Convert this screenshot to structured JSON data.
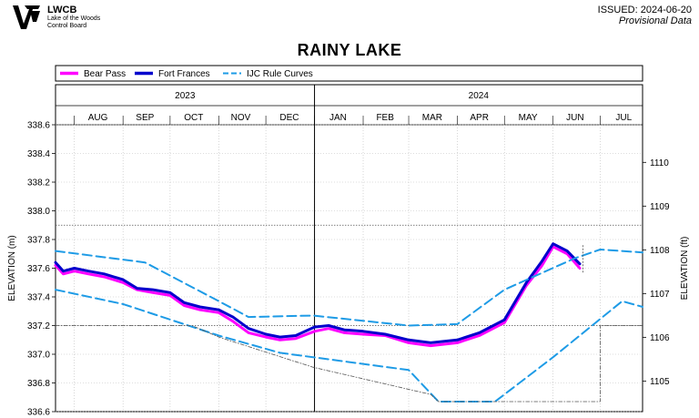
{
  "header": {
    "org_short": "LWCB",
    "org_line1": "Lake of the Woods",
    "org_line2": "Control Board",
    "issued": "ISSUED: 2024-06-20",
    "status": "Provisional Data",
    "logo_icon": "lwcb-logo-icon"
  },
  "chart_data": {
    "type": "line",
    "title": "RAINY LAKE",
    "ylabel": "ELEVATION (m)",
    "y2label": "ELEVATION (ft)",
    "ylim": [
      336.6,
      338.6
    ],
    "y2lim": [
      1104.3,
      1110.86
    ],
    "yticks": [
      "336.6",
      "336.8",
      "337.0",
      "337.2",
      "337.4",
      "337.6",
      "337.8",
      "338.0",
      "338.2",
      "338.4",
      "338.6"
    ],
    "y2ticks": [
      "1105",
      "1106",
      "1107",
      "1108",
      "1109",
      "1110"
    ],
    "xlim": [
      "2023-07-20",
      "2024-07-28"
    ],
    "years": [
      {
        "label": "2023",
        "start": "2023-07-20",
        "end": "2024-01-01"
      },
      {
        "label": "2024",
        "start": "2024-01-01",
        "end": "2024-07-28"
      }
    ],
    "months": [
      {
        "label": "AUG",
        "date": "2023-08-16"
      },
      {
        "label": "SEP",
        "date": "2023-09-15"
      },
      {
        "label": "OCT",
        "date": "2023-10-16"
      },
      {
        "label": "NOV",
        "date": "2023-11-15"
      },
      {
        "label": "DEC",
        "date": "2023-12-16"
      },
      {
        "label": "JAN",
        "date": "2024-01-16"
      },
      {
        "label": "FEB",
        "date": "2024-02-15"
      },
      {
        "label": "MAR",
        "date": "2024-03-16"
      },
      {
        "label": "APR",
        "date": "2024-04-15"
      },
      {
        "label": "MAY",
        "date": "2024-05-16"
      },
      {
        "label": "JUN",
        "date": "2024-06-15"
      },
      {
        "label": "JUL",
        "date": "2024-07-16"
      }
    ],
    "month_boundaries": [
      "2023-08-01",
      "2023-09-01",
      "2023-10-01",
      "2023-11-01",
      "2023-12-01",
      "2024-01-01",
      "2024-02-01",
      "2024-03-01",
      "2024-04-01",
      "2024-05-01",
      "2024-06-01",
      "2024-07-01"
    ],
    "colors": {
      "bear_pass": "#ff00ff",
      "fort_frances": "#0000cc",
      "rule_curves": "#1e9be6",
      "reference": "#555555"
    },
    "legend": [
      {
        "name": "Bear Pass",
        "color": "#ff00ff",
        "style": "solid"
      },
      {
        "name": "Fort Frances",
        "color": "#0000cc",
        "style": "solid"
      },
      {
        "name": "IJC Rule Curves",
        "color": "#1e9be6",
        "style": "dashed"
      }
    ],
    "series": [
      {
        "name": "Bear Pass",
        "color": "#ff00ff",
        "points": [
          [
            "2023-07-20",
            337.62
          ],
          [
            "2023-07-25",
            337.56
          ],
          [
            "2023-08-01",
            337.58
          ],
          [
            "2023-08-10",
            337.56
          ],
          [
            "2023-08-20",
            337.54
          ],
          [
            "2023-09-01",
            337.5
          ],
          [
            "2023-09-10",
            337.45
          ],
          [
            "2023-09-20",
            337.43
          ],
          [
            "2023-10-01",
            337.41
          ],
          [
            "2023-10-10",
            337.34
          ],
          [
            "2023-10-20",
            337.31
          ],
          [
            "2023-11-01",
            337.29
          ],
          [
            "2023-11-10",
            337.23
          ],
          [
            "2023-11-20",
            337.15
          ],
          [
            "2023-12-01",
            337.12
          ],
          [
            "2023-12-10",
            337.1
          ],
          [
            "2023-12-20",
            337.11
          ],
          [
            "2024-01-01",
            337.16
          ],
          [
            "2024-01-10",
            337.18
          ],
          [
            "2024-01-20",
            337.15
          ],
          [
            "2024-02-01",
            337.14
          ],
          [
            "2024-02-15",
            337.13
          ],
          [
            "2024-03-01",
            337.08
          ],
          [
            "2024-03-15",
            337.06
          ],
          [
            "2024-04-01",
            337.08
          ],
          [
            "2024-04-15",
            337.13
          ],
          [
            "2024-05-01",
            337.22
          ],
          [
            "2024-05-15",
            337.48
          ],
          [
            "2024-05-25",
            337.62
          ],
          [
            "2024-06-01",
            337.75
          ],
          [
            "2024-06-10",
            337.7
          ],
          [
            "2024-06-18",
            337.6
          ]
        ]
      },
      {
        "name": "Fort Frances",
        "color": "#0000cc",
        "points": [
          [
            "2023-07-20",
            337.64
          ],
          [
            "2023-07-25",
            337.58
          ],
          [
            "2023-08-01",
            337.6
          ],
          [
            "2023-08-10",
            337.58
          ],
          [
            "2023-08-20",
            337.56
          ],
          [
            "2023-09-01",
            337.52
          ],
          [
            "2023-09-10",
            337.46
          ],
          [
            "2023-09-20",
            337.45
          ],
          [
            "2023-10-01",
            337.43
          ],
          [
            "2023-10-10",
            337.36
          ],
          [
            "2023-10-20",
            337.33
          ],
          [
            "2023-11-01",
            337.31
          ],
          [
            "2023-11-10",
            337.26
          ],
          [
            "2023-11-20",
            337.18
          ],
          [
            "2023-12-01",
            337.14
          ],
          [
            "2023-12-10",
            337.12
          ],
          [
            "2023-12-20",
            337.13
          ],
          [
            "2024-01-01",
            337.19
          ],
          [
            "2024-01-10",
            337.2
          ],
          [
            "2024-01-20",
            337.17
          ],
          [
            "2024-02-01",
            337.16
          ],
          [
            "2024-02-15",
            337.14
          ],
          [
            "2024-03-01",
            337.1
          ],
          [
            "2024-03-15",
            337.08
          ],
          [
            "2024-04-01",
            337.1
          ],
          [
            "2024-04-15",
            337.15
          ],
          [
            "2024-05-01",
            337.24
          ],
          [
            "2024-05-15",
            337.5
          ],
          [
            "2024-05-25",
            337.65
          ],
          [
            "2024-06-01",
            337.77
          ],
          [
            "2024-06-10",
            337.72
          ],
          [
            "2024-06-18",
            337.63
          ]
        ]
      },
      {
        "name": "IJC Rule Curves",
        "color": "#1e9be6",
        "style": "dashed",
        "points": [
          [
            "2023-07-20",
            337.72
          ],
          [
            "2023-09-15",
            337.64
          ],
          [
            "2023-11-01",
            337.37
          ],
          [
            "2023-11-20",
            337.26
          ],
          [
            "2023-12-31",
            337.27
          ],
          [
            "2024-03-01",
            337.2
          ],
          [
            "2024-04-01",
            337.21
          ],
          [
            "2024-05-01",
            337.45
          ],
          [
            "2024-06-15",
            337.67
          ],
          [
            "2024-07-01",
            337.73
          ],
          [
            "2024-07-28",
            337.71
          ]
        ]
      },
      {
        "name": "IJC Rule Curves",
        "color": "#1e9be6",
        "style": "dashed",
        "points": [
          [
            "2023-07-20",
            337.45
          ],
          [
            "2023-09-01",
            337.35
          ],
          [
            "2023-11-01",
            337.13
          ],
          [
            "2023-12-10",
            337.01
          ],
          [
            "2024-03-01",
            336.89
          ],
          [
            "2024-03-20",
            336.67
          ],
          [
            "2024-04-25",
            336.67
          ],
          [
            "2024-06-01",
            336.98
          ],
          [
            "2024-07-15",
            337.37
          ],
          [
            "2024-07-28",
            337.33
          ]
        ]
      },
      {
        "name": "Reference",
        "color": "#555555",
        "style": "dashdot",
        "points": [
          [
            "2023-07-20",
            337.2
          ],
          [
            "2023-10-15",
            337.2
          ],
          [
            "2023-11-01",
            337.12
          ],
          [
            "2023-12-31",
            336.91
          ],
          [
            "2024-03-15",
            336.72
          ],
          [
            "2024-03-20",
            336.67
          ],
          [
            "2024-07-01",
            336.67
          ],
          [
            "2024-07-01",
            337.2
          ],
          [
            "2024-07-28",
            337.2
          ]
        ]
      }
    ],
    "reference_levels": [
      {
        "value": 337.9,
        "color": "#555555",
        "style": "dotted"
      },
      {
        "value": 337.2,
        "color": "#555555",
        "style": "dotted"
      }
    ],
    "current_marker": {
      "date": "2024-06-20",
      "y_from": 337.76,
      "y_to": 337.56
    }
  }
}
